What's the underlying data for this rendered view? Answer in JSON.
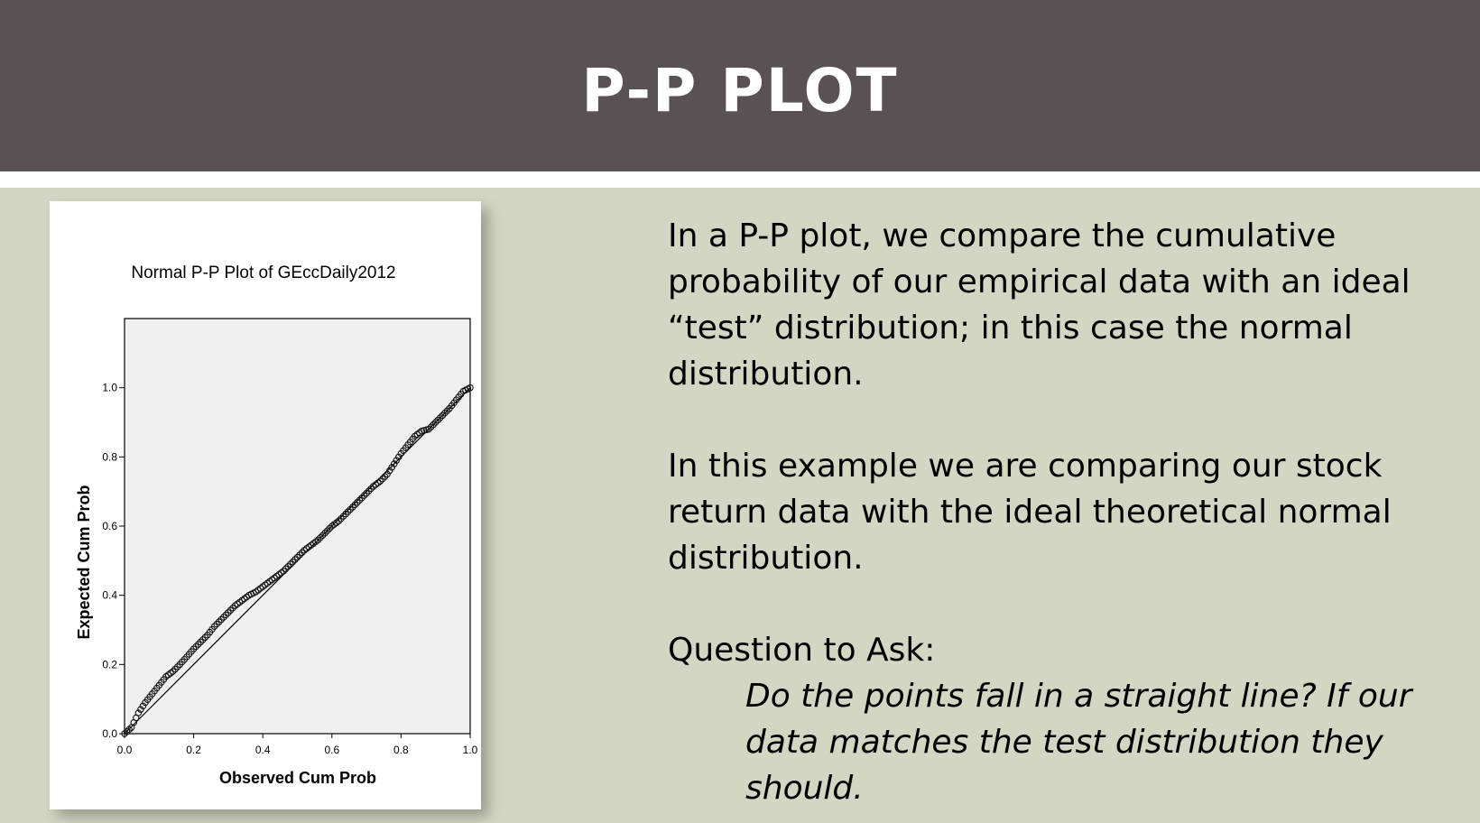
{
  "slide": {
    "title": "P-P PLOT",
    "paragraph1": "In a P-P plot, we compare the cumulative probability of our empirical data with an ideal “test” distribution; in this case the normal distribution.",
    "paragraph2": "In this example we are comparing our stock return data with the ideal theoretical normal distribution.",
    "question_label": "Question to Ask:",
    "question_text": "Do the points fall in a straight line? If our data matches the test distribution they should."
  },
  "chart_data": {
    "type": "scatter",
    "title": "Normal P-P Plot of GEccDaily2012",
    "xlabel": "Observed Cum Prob",
    "ylabel": "Expected Cum Prob",
    "xlim": [
      0.0,
      1.0
    ],
    "ylim": [
      0.0,
      1.2
    ],
    "xticks": [
      "0.0",
      "0.2",
      "0.4",
      "0.6",
      "0.8",
      "1.0"
    ],
    "yticks": [
      "0.0",
      "0.2",
      "0.4",
      "0.6",
      "0.8",
      "1.0"
    ],
    "reference_line": {
      "x": [
        0.0,
        1.0
      ],
      "y": [
        0.0,
        1.0
      ]
    },
    "grid": false,
    "plot_background": "#f0f0f0",
    "marker": "open-circle",
    "series": [
      {
        "x": [
          0.0,
          0.02,
          0.04,
          0.06,
          0.08,
          0.1,
          0.12,
          0.14,
          0.16,
          0.18,
          0.2,
          0.22,
          0.24,
          0.26,
          0.28,
          0.3,
          0.32,
          0.34,
          0.36,
          0.38,
          0.4,
          0.42,
          0.44,
          0.46,
          0.48,
          0.5,
          0.52,
          0.54,
          0.56,
          0.58,
          0.6,
          0.62,
          0.64,
          0.66,
          0.68,
          0.7,
          0.72,
          0.74,
          0.76,
          0.78,
          0.8,
          0.82,
          0.84,
          0.86,
          0.88,
          0.9,
          0.92,
          0.94,
          0.96,
          0.98,
          1.0
        ],
        "y": [
          0.0,
          0.018,
          0.06,
          0.09,
          0.115,
          0.14,
          0.165,
          0.18,
          0.2,
          0.222,
          0.245,
          0.265,
          0.285,
          0.31,
          0.33,
          0.35,
          0.37,
          0.385,
          0.4,
          0.41,
          0.425,
          0.44,
          0.455,
          0.47,
          0.49,
          0.51,
          0.53,
          0.545,
          0.56,
          0.58,
          0.6,
          0.615,
          0.635,
          0.655,
          0.675,
          0.695,
          0.715,
          0.73,
          0.75,
          0.78,
          0.81,
          0.835,
          0.86,
          0.875,
          0.88,
          0.9,
          0.92,
          0.94,
          0.965,
          0.99,
          1.0
        ]
      }
    ]
  }
}
